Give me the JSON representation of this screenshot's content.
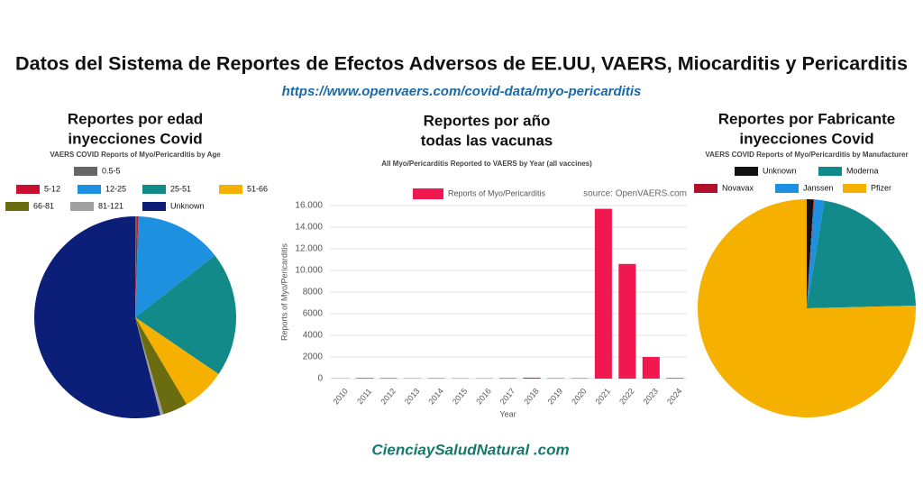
{
  "title": "Datos del Sistema de Reportes de Efectos Adversos de EE.UU, VAERS, Miocarditis y Pericarditis",
  "url": "https://www.openvaers.com/covid-data/myo-pericarditis",
  "footer": "CienciaySaludNatural .com",
  "chart_data": [
    {
      "type": "pie",
      "title": [
        "Reportes por edad",
        "inyecciones Covid"
      ],
      "subtitle": "VAERS COVID Reports of Myo/Pericarditis by Age",
      "categories": [
        "0.5-5",
        "5-12",
        "12-25",
        "25-51",
        "51-66",
        "66-81",
        "81-121",
        "Unknown"
      ],
      "values": [
        0.2,
        0.3,
        14,
        20,
        7,
        4,
        0.5,
        54
      ],
      "colors": [
        "#666666",
        "#c8102e",
        "#1e90e0",
        "#138a8a",
        "#f5b000",
        "#6b6b10",
        "#a0a0a0",
        "#0b1f78"
      ]
    },
    {
      "type": "bar",
      "title": [
        "Reportes por año",
        "todas las vacunas"
      ],
      "subtitle": "All Myo/Pericarditis Reported to VAERS by Year (all vaccines)",
      "source": "source: OpenVAERS.com",
      "x_label": "Year",
      "y_label": "Reports of Myo/Pericarditis",
      "categories": [
        "2010",
        "2011",
        "2012",
        "2013",
        "2014",
        "2015",
        "2016",
        "2017",
        "2018",
        "2019",
        "2020",
        "2021",
        "2022",
        "2023",
        "2024"
      ],
      "series": [
        {
          "name": "Reports of Myo/Pericarditis",
          "color": "#f0184e",
          "values": [
            20,
            60,
            50,
            30,
            40,
            25,
            25,
            50,
            90,
            40,
            40,
            15700,
            10600,
            2000,
            60
          ]
        }
      ],
      "ylim": [
        0,
        16000
      ],
      "yticks": [
        0,
        2000,
        4000,
        6000,
        8000,
        10000,
        12000,
        14000,
        16000
      ],
      "ytick_labels": [
        "0",
        "2000",
        "4000",
        "6000",
        "8000",
        "10.000",
        "12.000",
        "14.000",
        "16.000"
      ],
      "grid": true
    },
    {
      "type": "pie",
      "title": [
        "Reportes por Fabricante",
        "inyecciones Covid"
      ],
      "subtitle": "VAERS COVID Reports of Myo/Pericarditis by Manufacturer",
      "categories": [
        "Unknown",
        "Novavax",
        "Janssen",
        "Moderna",
        "Pfizer"
      ],
      "values": [
        1,
        0.1,
        1.5,
        22,
        75.4
      ],
      "colors": [
        "#111111",
        "#b0102a",
        "#1e90e0",
        "#138a8a",
        "#f5b000"
      ]
    }
  ]
}
